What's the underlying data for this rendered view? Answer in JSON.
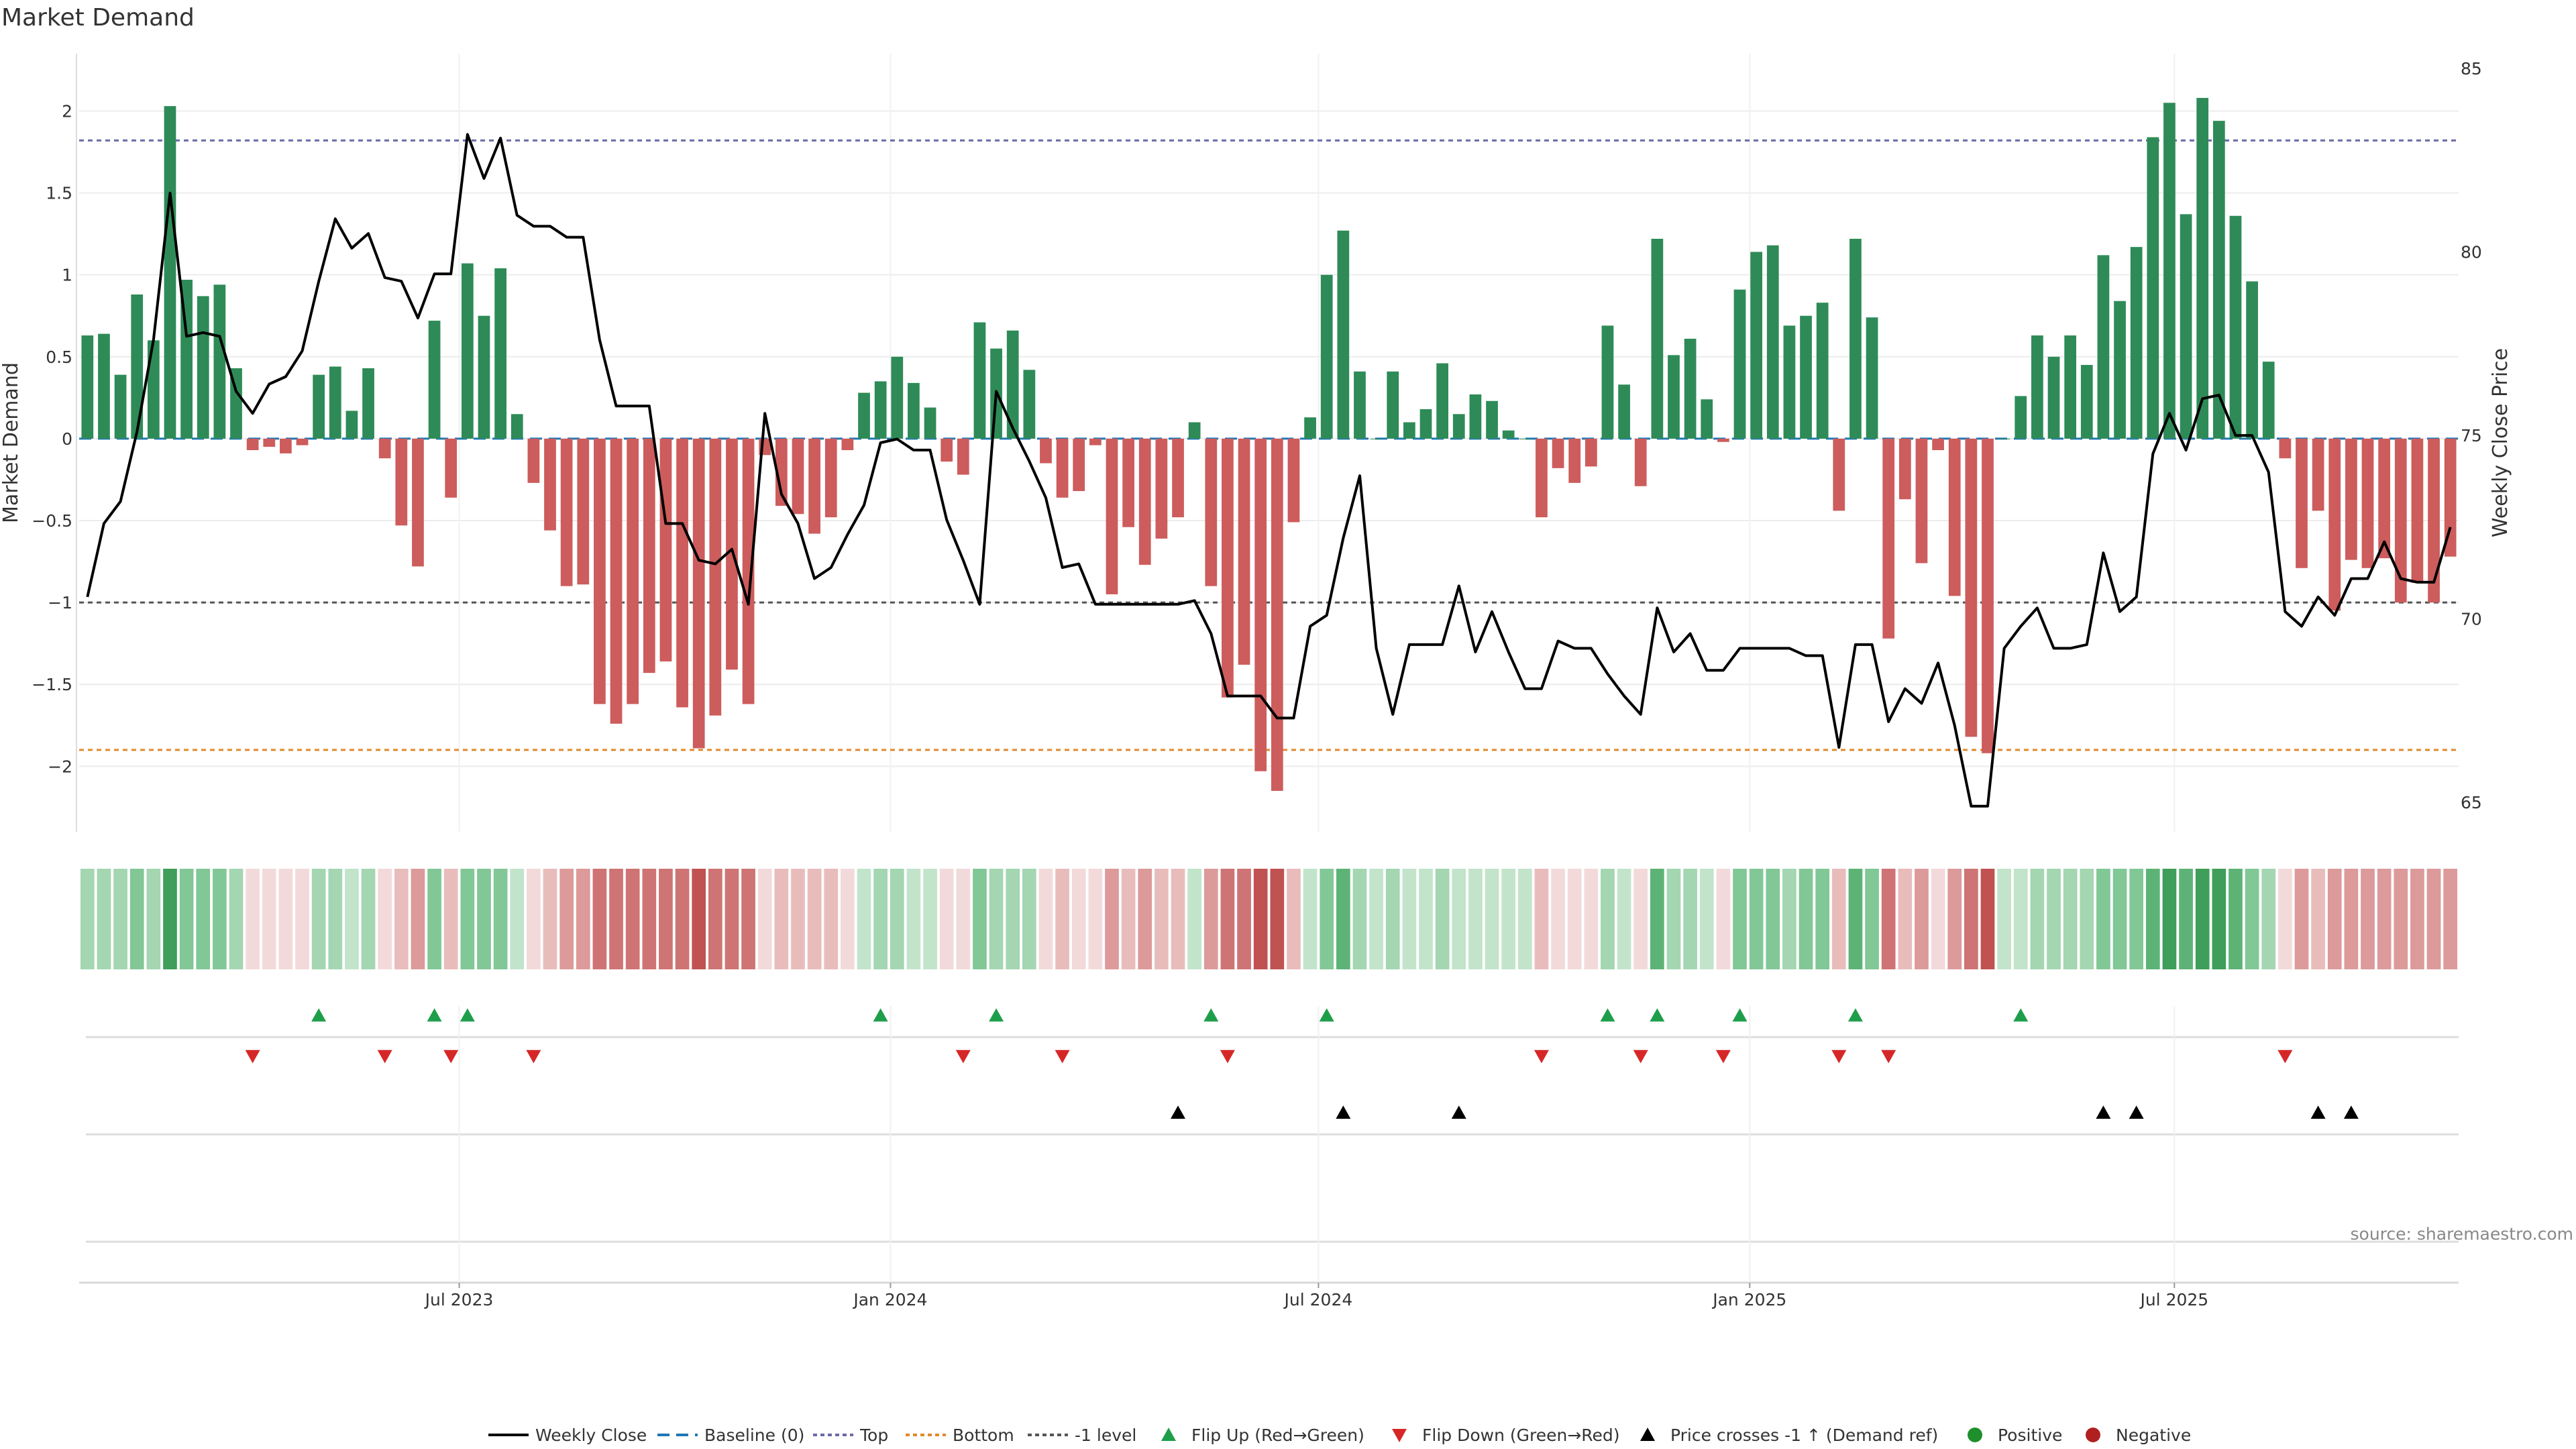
{
  "title": "Market Demand",
  "source": "source: sharemaestro.com",
  "colors": {
    "positive": "#2e8b57",
    "negative": "#cd5c5c",
    "price": "#000000",
    "top_line": "#6a6aa8",
    "bottom_line": "#e08a2c",
    "minus1_line": "#555555",
    "baseline": "#1f77b4",
    "flip_up": "#1e9e4a",
    "flip_down": "#d62728"
  },
  "chart_data": {
    "type": "bar",
    "title": "Market Demand",
    "ylabel": "Market Demand",
    "y2label": "Weekly Close Price",
    "ylim": [
      -2.4,
      2.35
    ],
    "y2lim": [
      64.2,
      85.4
    ],
    "yticks": [
      -2,
      -1.5,
      -1,
      -0.5,
      0,
      0.5,
      1,
      1.5,
      2
    ],
    "y2ticks": [
      65,
      70,
      75,
      80,
      85
    ],
    "reference_lines": {
      "top": 1.82,
      "bottom": -1.9,
      "minus1": -1.0,
      "baseline": 0
    },
    "x_tick_labels": [
      {
        "label": "Jul 2023",
        "index": 22.5
      },
      {
        "label": "Jan 2024",
        "index": 48.6
      },
      {
        "label": "Jul 2024",
        "index": 74.5
      },
      {
        "label": "Jan 2025",
        "index": 100.6
      },
      {
        "label": "Jul 2025",
        "index": 126.3
      }
    ],
    "demand": [
      0.63,
      0.64,
      0.39,
      0.88,
      0.6,
      2.03,
      0.97,
      0.87,
      0.94,
      0.43,
      -0.07,
      -0.05,
      -0.09,
      -0.04,
      0.39,
      0.44,
      0.17,
      0.43,
      -0.12,
      -0.53,
      -0.78,
      0.72,
      -0.36,
      1.07,
      0.75,
      1.04,
      0.15,
      -0.27,
      -0.56,
      -0.9,
      -0.89,
      -1.62,
      -1.74,
      -1.62,
      -1.43,
      -1.36,
      -1.64,
      -1.89,
      -1.69,
      -1.41,
      -1.62,
      -0.1,
      -0.41,
      -0.46,
      -0.58,
      -0.48,
      -0.07,
      0.28,
      0.35,
      0.5,
      0.34,
      0.19,
      -0.14,
      -0.22,
      0.71,
      0.55,
      0.66,
      0.42,
      -0.15,
      -0.36,
      -0.32,
      -0.04,
      -0.95,
      -0.54,
      -0.77,
      -0.61,
      -0.48,
      0.1,
      -0.9,
      -1.58,
      -1.38,
      -2.03,
      -2.15,
      -0.51,
      0.13,
      1.0,
      1.27,
      0.41,
      0.0,
      0.41,
      0.1,
      0.18,
      0.46,
      0.15,
      0.27,
      0.23,
      0.05,
      0.0,
      -0.48,
      -0.18,
      -0.27,
      -0.17,
      0.69,
      0.33,
      -0.29,
      1.22,
      0.51,
      0.61,
      0.24,
      -0.02,
      0.91,
      1.14,
      1.18,
      0.69,
      0.75,
      0.83,
      -0.44,
      1.22,
      0.74,
      -1.22,
      -0.37,
      -0.76,
      -0.07,
      -0.96,
      -1.82,
      -1.92,
      0.0,
      0.26,
      0.63,
      0.5,
      0.63,
      0.45,
      1.12,
      0.84,
      1.17,
      1.84,
      2.05,
      1.37,
      2.08,
      1.94,
      1.36,
      0.96,
      0.47,
      -0.12,
      -0.79,
      -0.44,
      -1.05,
      -0.74,
      -0.79,
      -0.73,
      -1.0,
      -0.88,
      -1.0,
      -0.72
    ],
    "close": [
      70.6,
      72.6,
      73.2,
      75.1,
      77.6,
      81.6,
      77.7,
      77.8,
      77.7,
      76.2,
      75.6,
      76.4,
      76.6,
      77.3,
      79.2,
      80.9,
      80.1,
      80.5,
      79.3,
      79.2,
      78.2,
      79.4,
      79.4,
      83.2,
      82.0,
      83.1,
      81.0,
      80.7,
      80.7,
      80.4,
      80.4,
      77.6,
      75.8,
      75.8,
      75.8,
      72.6,
      72.6,
      71.6,
      71.5,
      71.9,
      70.4,
      75.6,
      73.4,
      72.6,
      71.1,
      71.4,
      72.3,
      73.1,
      74.8,
      74.9,
      74.6,
      74.6,
      72.7,
      71.6,
      70.4,
      76.2,
      75.2,
      74.3,
      73.3,
      71.4,
      71.5,
      70.4,
      70.4,
      70.4,
      70.4,
      70.4,
      70.4,
      70.5,
      69.6,
      67.9,
      67.9,
      67.9,
      67.3,
      67.3,
      69.8,
      70.1,
      72.2,
      73.9,
      69.2,
      67.4,
      69.3,
      69.3,
      69.3,
      70.9,
      69.1,
      70.2,
      69.1,
      68.1,
      68.1,
      69.4,
      69.2,
      69.2,
      68.5,
      67.9,
      67.4,
      70.3,
      69.1,
      69.6,
      68.6,
      68.6,
      69.2,
      69.2,
      69.2,
      69.2,
      69.0,
      69.0,
      66.5,
      69.3,
      69.3,
      67.2,
      68.1,
      67.7,
      68.8,
      67.1,
      64.9,
      64.9,
      69.2,
      69.8,
      70.3,
      69.2,
      69.2,
      69.3,
      71.8,
      70.2,
      70.6,
      74.5,
      75.6,
      74.6,
      76.0,
      76.1,
      75.0,
      75.0,
      74.0,
      70.2,
      69.8,
      70.6,
      70.1,
      71.1,
      71.1,
      72.1,
      71.1,
      71.0,
      71.0,
      72.5
    ],
    "flip_up": [
      14,
      21,
      23,
      48,
      55,
      68,
      75,
      92,
      95,
      100,
      107,
      117
    ],
    "flip_down": [
      10,
      18,
      22,
      27,
      53,
      59,
      69,
      88,
      94,
      99,
      106,
      109,
      133
    ],
    "price_cross_up": [
      66,
      76,
      83,
      122,
      124,
      135,
      137
    ],
    "legend": [
      "Weekly Close",
      "Baseline (0)",
      "Top",
      "Bottom",
      "-1 level",
      "Flip Up (Red→Green)",
      "Flip Down (Green→Red)",
      "Price crosses -1 ↑ (Demand ref)",
      "Positive",
      "Negative"
    ]
  }
}
